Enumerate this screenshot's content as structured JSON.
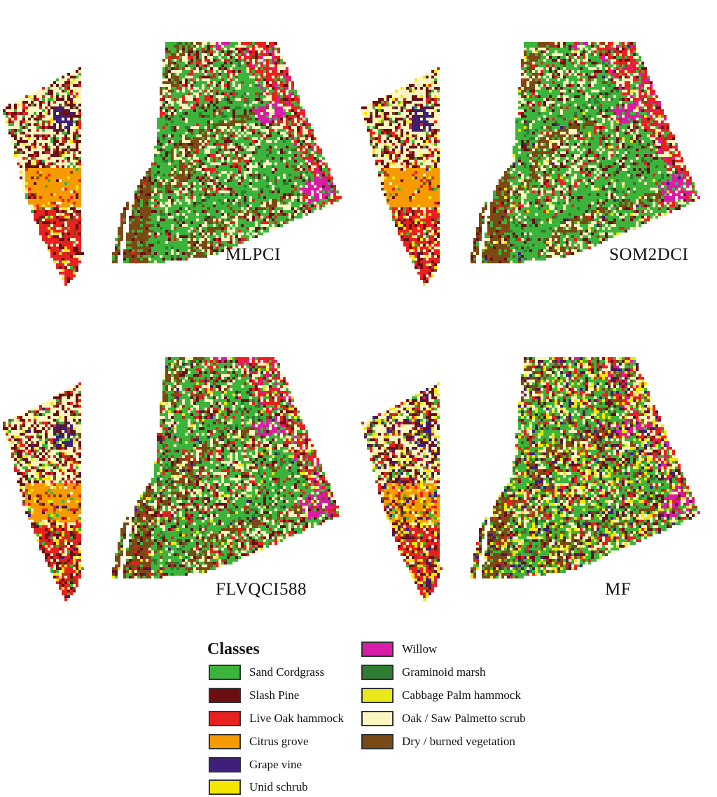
{
  "panels": [
    {
      "label": "MLPCI"
    },
    {
      "label": "SOM2DCI"
    },
    {
      "label": "FLVQCI588"
    },
    {
      "label": "MF"
    }
  ],
  "legend": {
    "title": "Classes",
    "left_column": [
      {
        "label": "Sand Cordgrass",
        "color": "#3cb43c"
      },
      {
        "label": "Slash Pine",
        "color": "#6b0f14"
      },
      {
        "label": "Live Oak hammock",
        "color": "#e82020"
      },
      {
        "label": "Citrus grove",
        "color": "#f59a00"
      },
      {
        "label": "Grape vine",
        "color": "#3e1f7a"
      },
      {
        "label": "Unid schrub",
        "color": "#f5e600"
      }
    ],
    "right_column": [
      {
        "label": "Willow",
        "color": "#d81ca8"
      },
      {
        "label": "Graminoid marsh",
        "color": "#2e7d32"
      },
      {
        "label": "Cabbage Palm hammock",
        "color": "#e8e81a"
      },
      {
        "label": "Oak / Saw Palmetto scrub",
        "color": "#fbf6c0"
      },
      {
        "label": "Dry / burned vegetation",
        "color": "#7a4a14"
      }
    ]
  }
}
